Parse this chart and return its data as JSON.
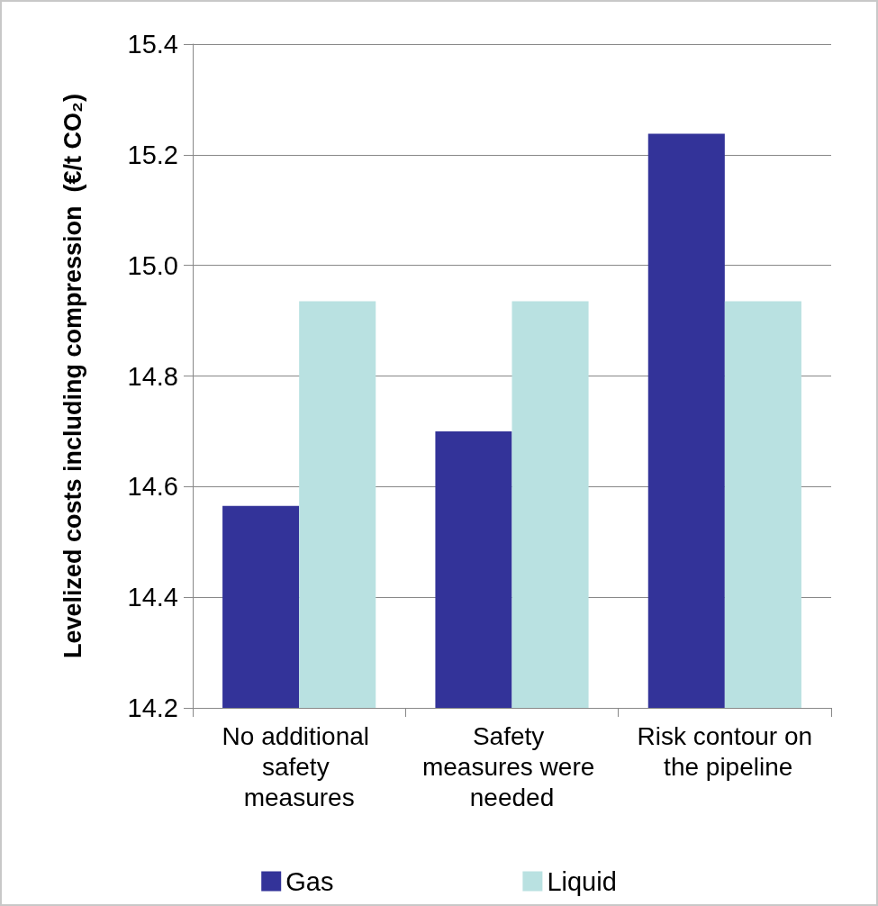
{
  "chart_data": {
    "type": "bar",
    "ylabel": "Levelized costs including compression  (€/t CO₂)",
    "categories": [
      "No additional safety measures",
      "Safety measures were needed",
      "Risk contour on the pipeline"
    ],
    "series": [
      {
        "name": "Gas",
        "color": "#333399",
        "values": [
          14.565,
          14.7,
          15.238
        ]
      },
      {
        "name": "Liquid",
        "color": "#b9e1e1",
        "values": [
          14.935,
          14.935,
          14.935
        ]
      }
    ],
    "ylim": [
      14.2,
      15.4
    ],
    "yticks": [
      14.2,
      14.4,
      14.6,
      14.8,
      {
        "value": 15,
        "label": "15.0"
      },
      15.2,
      15.4
    ],
    "grid": "y",
    "legend": "bottom"
  }
}
